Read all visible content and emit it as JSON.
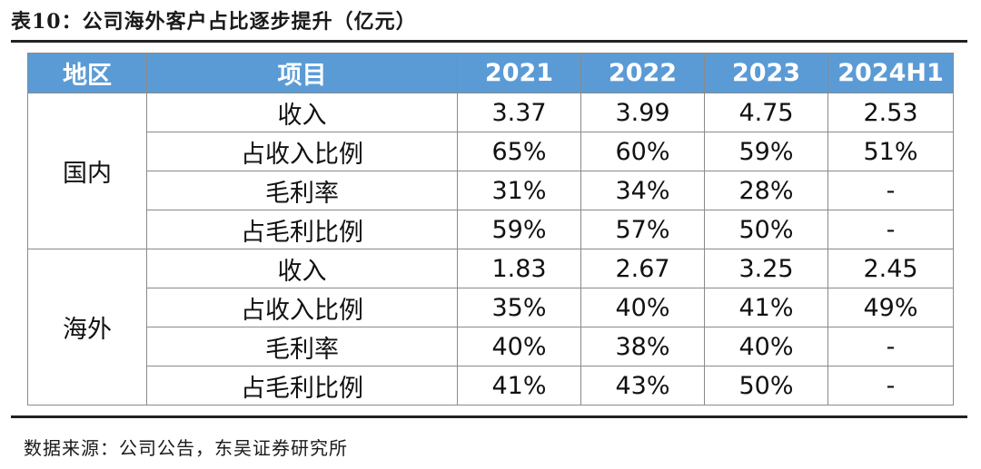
{
  "title": "表10：公司海外客户占比逐步提升（亿元）",
  "table": {
    "headers": [
      "地区",
      "项目",
      "2021",
      "2022",
      "2023",
      "2024H1"
    ],
    "groups": [
      {
        "region": "国内",
        "rows": [
          {
            "item": "收入",
            "values": [
              "3.37",
              "3.99",
              "4.75",
              "2.53"
            ]
          },
          {
            "item": "占收入比例",
            "values": [
              "65%",
              "60%",
              "59%",
              "51%"
            ]
          },
          {
            "item": "毛利率",
            "values": [
              "31%",
              "34%",
              "28%",
              "-"
            ]
          },
          {
            "item": "占毛利比例",
            "values": [
              "59%",
              "57%",
              "50%",
              "-"
            ]
          }
        ]
      },
      {
        "region": "海外",
        "rows": [
          {
            "item": "收入",
            "values": [
              "1.83",
              "2.67",
              "3.25",
              "2.45"
            ]
          },
          {
            "item": "占收入比例",
            "values": [
              "35%",
              "40%",
              "41%",
              "49%"
            ]
          },
          {
            "item": "毛利率",
            "values": [
              "40%",
              "38%",
              "40%",
              "-"
            ]
          },
          {
            "item": "占毛利比例",
            "values": [
              "41%",
              "43%",
              "50%",
              "-"
            ]
          }
        ]
      }
    ]
  },
  "source": "数据来源：公司公告，东吴证券研究所",
  "colors": {
    "header_bg": "#5b9bd5",
    "header_text": "#ffffff",
    "border": "#8a8a8a",
    "rule": "#222222"
  }
}
